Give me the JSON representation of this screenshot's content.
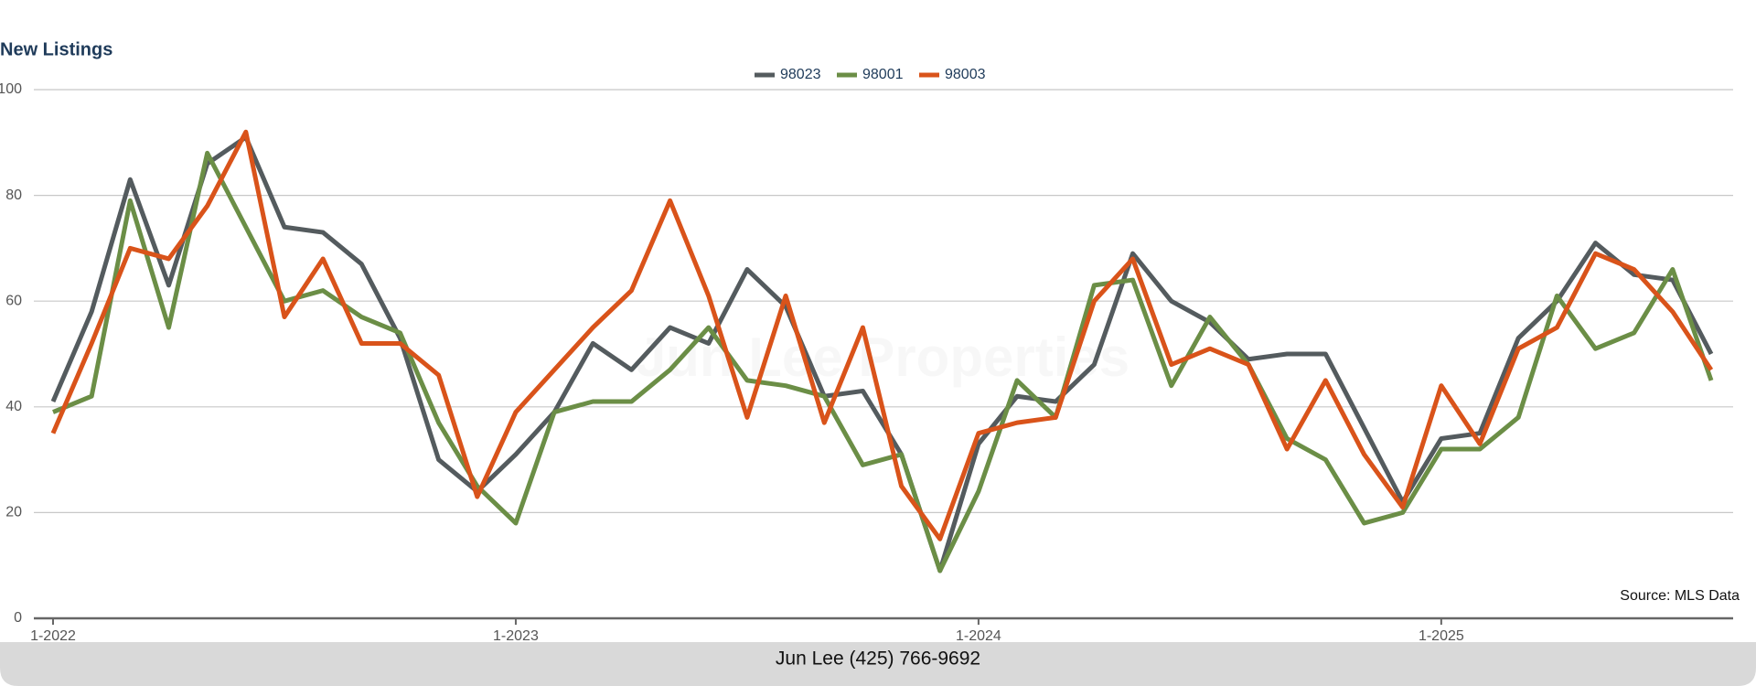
{
  "chart_data": {
    "type": "line",
    "title": "New Listings",
    "categories": [
      "1-2022",
      null,
      null,
      null,
      null,
      null,
      null,
      null,
      null,
      null,
      null,
      null,
      "1-2023",
      null,
      null,
      null,
      null,
      null,
      null,
      null,
      null,
      null,
      null,
      null,
      "1-2024",
      null,
      null,
      null,
      null,
      null,
      null,
      null,
      null,
      null,
      null,
      null,
      "1-2025",
      null,
      null,
      null,
      null,
      null,
      null,
      null
    ],
    "series": [
      {
        "name": "98023",
        "color": "#545b5e",
        "values": [
          41,
          58,
          83,
          63,
          86,
          91,
          74,
          73,
          67,
          53,
          30,
          24,
          31,
          39,
          52,
          47,
          55,
          52,
          66,
          59,
          42,
          43,
          31,
          9,
          33,
          42,
          41,
          48,
          69,
          60,
          56,
          49,
          50,
          50,
          36,
          22,
          34,
          35,
          53,
          60,
          71,
          65,
          64,
          50
        ]
      },
      {
        "name": "98001",
        "color": "#6b8e46",
        "values": [
          39,
          42,
          79,
          55,
          88,
          74,
          60,
          62,
          57,
          54,
          37,
          25,
          18,
          39,
          41,
          41,
          47,
          55,
          45,
          44,
          42,
          29,
          31,
          9,
          24,
          45,
          38,
          63,
          64,
          44,
          57,
          48,
          34,
          30,
          18,
          20,
          32,
          32,
          38,
          61,
          51,
          54,
          66,
          45
        ]
      },
      {
        "name": "98003",
        "color": "#d9531a",
        "values": [
          35,
          52,
          70,
          68,
          78,
          92,
          57,
          68,
          52,
          52,
          46,
          23,
          39,
          47,
          55,
          62,
          79,
          61,
          38,
          61,
          37,
          55,
          25,
          15,
          35,
          37,
          38,
          60,
          68,
          48,
          51,
          48,
          32,
          45,
          31,
          21,
          44,
          33,
          51,
          55,
          69,
          66,
          58,
          47
        ]
      }
    ],
    "ylim": [
      0,
      100
    ],
    "yticks": [
      0,
      20,
      40,
      60,
      80,
      100
    ],
    "grid": true,
    "legend": "top",
    "watermark": "Jun Lee Properties",
    "source": "Source: MLS Data",
    "footer": "Jun Lee (425) 766-9692"
  }
}
